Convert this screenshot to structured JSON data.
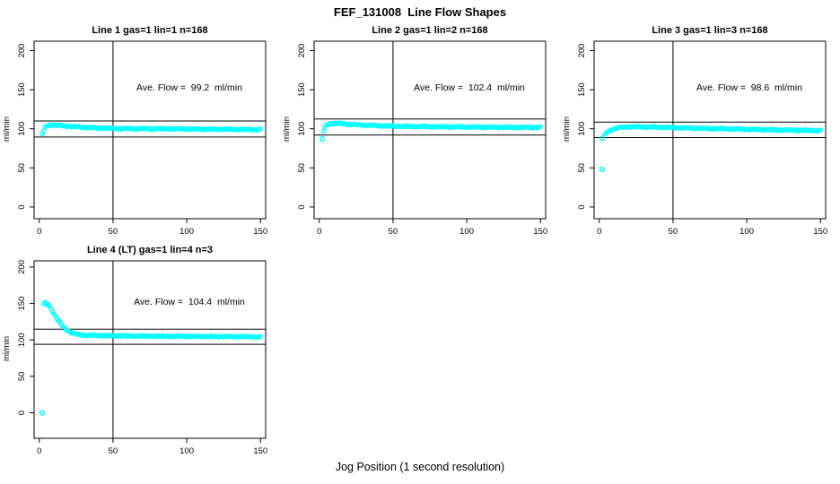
{
  "figure": {
    "title": "FEF_131008  Line Flow Shapes",
    "xlabel": "Jog Position (1 second resolution)",
    "ylabel": "ml/min",
    "marker_color": "#00ffff",
    "line_color": "#000000"
  },
  "chart_data": [
    {
      "type": "scatter",
      "title": "Line 1 gas=1 lin=1 n=168",
      "annotation": "Ave. Flow =  99.2  ml/min",
      "ave_flow_ml_min": 99.2,
      "n": 168,
      "ylabel": "ml/min",
      "marker_color": "#00ffff",
      "x_ticks": [
        0,
        50,
        100,
        150
      ],
      "y_ticks": [
        0,
        50,
        100,
        150,
        200
      ],
      "xlim": [
        -3.5,
        153.5
      ],
      "ylim": [
        -15,
        212
      ],
      "vline_x": 50,
      "hlines": [
        110,
        89.5
      ],
      "keypoints": [
        [
          2,
          93.5
        ],
        [
          3,
          97
        ],
        [
          4,
          101
        ],
        [
          5,
          103.5
        ],
        [
          7,
          105
        ],
        [
          10,
          104.8
        ],
        [
          15,
          104
        ],
        [
          20,
          103.3
        ],
        [
          25,
          102.5
        ],
        [
          30,
          102
        ],
        [
          40,
          101
        ],
        [
          50,
          100.4
        ],
        [
          60,
          100.2
        ],
        [
          80,
          100
        ],
        [
          100,
          99.8
        ],
        [
          120,
          99.5
        ],
        [
          150,
          99
        ]
      ],
      "outliers": []
    },
    {
      "type": "scatter",
      "title": "Line 2 gas=1 lin=2 n=168",
      "annotation": "Ave. Flow =  102.4  ml/min",
      "ave_flow_ml_min": 102.4,
      "n": 168,
      "ylabel": "ml/min",
      "marker_color": "#00ffff",
      "x_ticks": [
        0,
        50,
        100,
        150
      ],
      "y_ticks": [
        0,
        50,
        100,
        150,
        200
      ],
      "xlim": [
        -3.5,
        153.5
      ],
      "ylim": [
        -15,
        212
      ],
      "vline_x": 50,
      "hlines": [
        112.5,
        92
      ],
      "keypoints": [
        [
          3,
          97
        ],
        [
          4,
          102
        ],
        [
          5,
          104.5
        ],
        [
          6,
          106
        ],
        [
          8,
          107
        ],
        [
          12,
          107
        ],
        [
          16,
          106.5
        ],
        [
          20,
          106
        ],
        [
          25,
          105.3
        ],
        [
          30,
          104.8
        ],
        [
          40,
          104
        ],
        [
          50,
          103.4
        ],
        [
          60,
          103
        ],
        [
          80,
          102.6
        ],
        [
          100,
          102.3
        ],
        [
          120,
          102
        ],
        [
          150,
          101.8
        ]
      ],
      "outliers": [
        [
          2,
          87
        ]
      ]
    },
    {
      "type": "scatter",
      "title": "Line 3 gas=1 lin=3 n=168",
      "annotation": "Ave. Flow =  98.6  ml/min",
      "ave_flow_ml_min": 98.6,
      "n": 168,
      "ylabel": "ml/min",
      "marker_color": "#00ffff",
      "x_ticks": [
        0,
        50,
        100,
        150
      ],
      "y_ticks": [
        0,
        50,
        100,
        150,
        200
      ],
      "xlim": [
        -3.5,
        153.5
      ],
      "ylim": [
        -15,
        212
      ],
      "vline_x": 50,
      "hlines": [
        108.5,
        88.7
      ],
      "keypoints": [
        [
          4,
          92.5
        ],
        [
          5,
          95
        ],
        [
          6,
          96.5
        ],
        [
          8,
          98.5
        ],
        [
          10,
          100
        ],
        [
          13,
          101.2
        ],
        [
          16,
          102
        ],
        [
          20,
          102.4
        ],
        [
          25,
          102.5
        ],
        [
          30,
          102.4
        ],
        [
          40,
          102
        ],
        [
          50,
          101.5
        ],
        [
          60,
          101
        ],
        [
          80,
          100.2
        ],
        [
          100,
          99.4
        ],
        [
          120,
          98.6
        ],
        [
          140,
          98
        ],
        [
          150,
          97.6
        ]
      ],
      "outliers": [
        [
          2,
          88
        ],
        [
          2,
          48
        ]
      ]
    },
    {
      "type": "scatter",
      "title": "Line 4 (LT) gas=1 lin=4 n=3",
      "annotation": "Ave. Flow =  104.4  ml/min",
      "ave_flow_ml_min": 104.4,
      "n": 3,
      "ylabel": "ml/min",
      "marker_color": "#00ffff",
      "x_ticks": [
        0,
        50,
        100,
        150
      ],
      "y_ticks": [
        0,
        50,
        100,
        150,
        200
      ],
      "xlim": [
        -3.5,
        153.5
      ],
      "ylim": [
        -35,
        208.5
      ],
      "vline_x": 50,
      "hlines": [
        114.8,
        94
      ],
      "keypoints": [
        [
          3,
          149
        ],
        [
          4,
          150.5
        ],
        [
          5,
          150.5
        ],
        [
          6,
          149
        ],
        [
          7,
          146
        ],
        [
          8,
          143
        ],
        [
          9,
          139.5
        ],
        [
          10,
          136
        ],
        [
          11,
          132.5
        ],
        [
          12,
          129.5
        ],
        [
          13,
          126.5
        ],
        [
          14,
          124
        ],
        [
          15,
          121.5
        ],
        [
          16,
          119
        ],
        [
          17,
          117
        ],
        [
          18,
          115
        ],
        [
          19,
          113.5
        ],
        [
          20,
          112
        ],
        [
          22,
          110
        ],
        [
          24,
          108.5
        ],
        [
          26,
          107.5
        ],
        [
          28,
          107
        ],
        [
          30,
          106.7
        ],
        [
          35,
          106.2
        ],
        [
          40,
          106
        ],
        [
          50,
          105.7
        ],
        [
          60,
          105.4
        ],
        [
          80,
          105.1
        ],
        [
          100,
          104.9
        ],
        [
          120,
          104.6
        ],
        [
          150,
          104.2
        ]
      ],
      "outliers": [
        [
          2,
          0
        ]
      ]
    }
  ]
}
